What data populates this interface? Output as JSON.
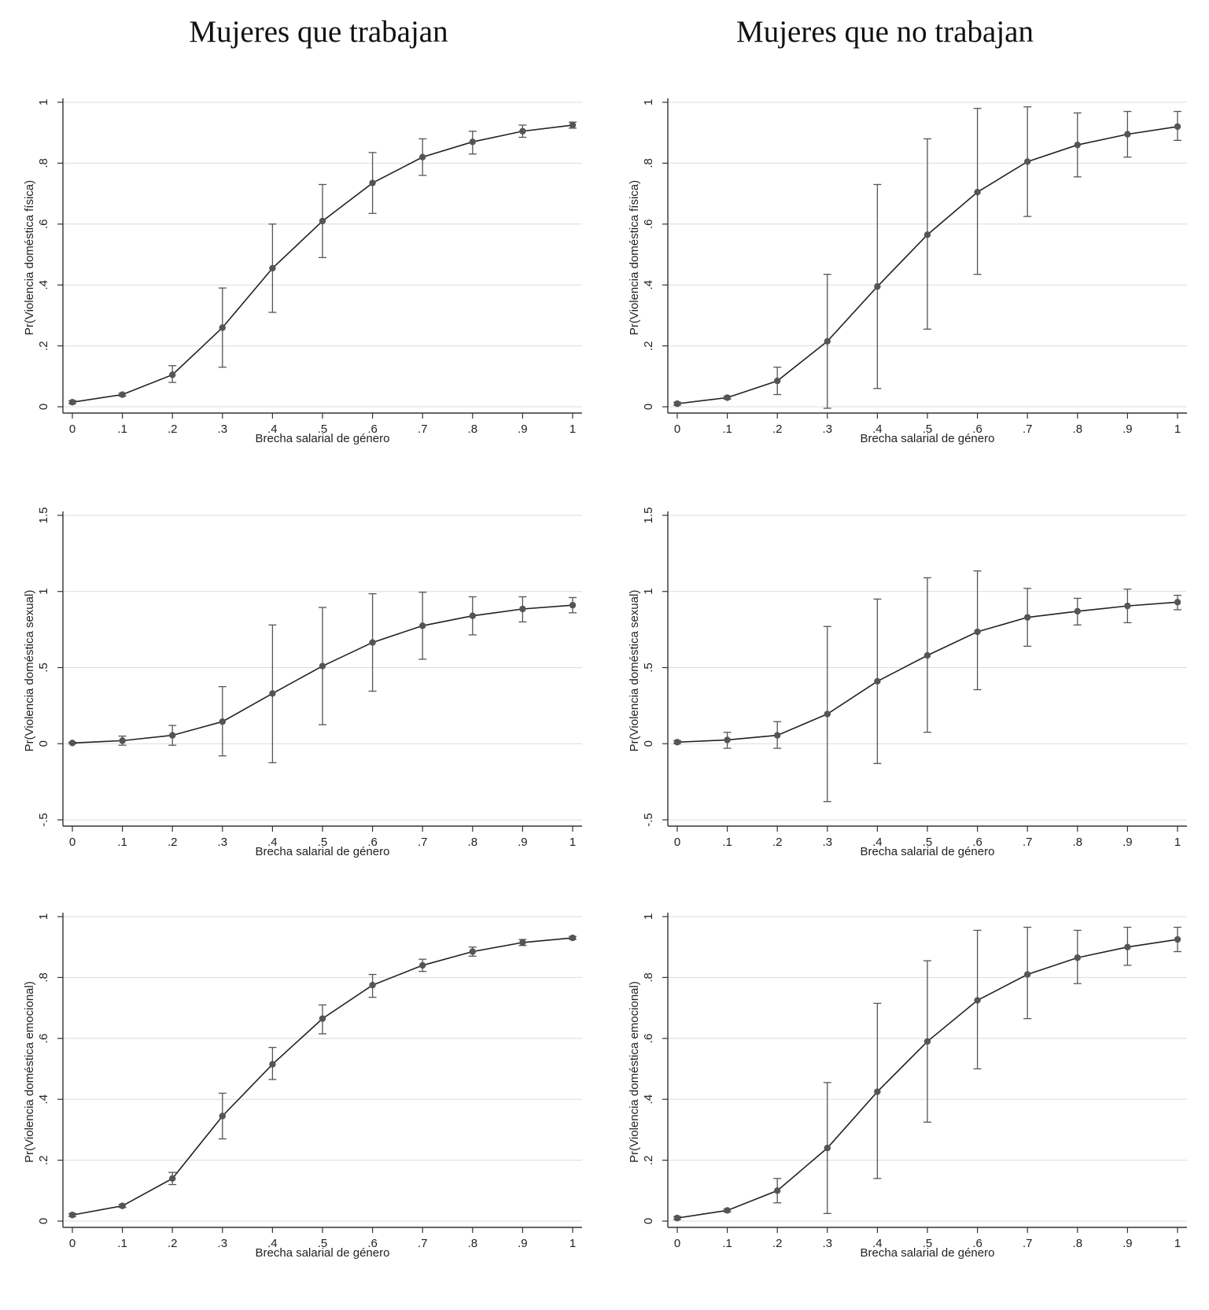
{
  "headers": [
    "Mujeres que trabajan",
    "Mujeres que no trabajan"
  ],
  "chart_data": [
    {
      "type": "line",
      "column": "Mujeres que trabajan",
      "xlabel": "Brecha salarial de género",
      "ylabel": "Pr(Violencia doméstica física)",
      "x": [
        0,
        0.1,
        0.2,
        0.3,
        0.4,
        0.5,
        0.6,
        0.7,
        0.8,
        0.9,
        1
      ],
      "xticks": [
        "0",
        ".1",
        ".2",
        ".3",
        ".4",
        ".5",
        ".6",
        ".7",
        ".8",
        ".9",
        "1"
      ],
      "yticks": [
        0,
        0.2,
        0.4,
        0.6,
        0.8,
        1
      ],
      "ytick_labels": [
        "0",
        ".2",
        ".4",
        ".6",
        ".8",
        "1"
      ],
      "ylim": [
        0,
        1
      ],
      "grid": true,
      "values": [
        0.015,
        0.04,
        0.105,
        0.26,
        0.455,
        0.61,
        0.735,
        0.82,
        0.87,
        0.905,
        0.925
      ],
      "ci_low": [
        0.01,
        0.035,
        0.08,
        0.13,
        0.31,
        0.49,
        0.635,
        0.76,
        0.83,
        0.885,
        0.915
      ],
      "ci_high": [
        0.02,
        0.045,
        0.135,
        0.39,
        0.6,
        0.73,
        0.835,
        0.88,
        0.905,
        0.925,
        0.935
      ]
    },
    {
      "type": "line",
      "column": "Mujeres que no trabajan",
      "xlabel": "Brecha salarial de género",
      "ylabel": "Pr(Violencia doméstica física)",
      "x": [
        0,
        0.1,
        0.2,
        0.3,
        0.4,
        0.5,
        0.6,
        0.7,
        0.8,
        0.9,
        1
      ],
      "xticks": [
        "0",
        ".1",
        ".2",
        ".3",
        ".4",
        ".5",
        ".6",
        ".7",
        ".8",
        ".9",
        "1"
      ],
      "yticks": [
        0,
        0.2,
        0.4,
        0.6,
        0.8,
        1
      ],
      "ytick_labels": [
        "0",
        ".2",
        ".4",
        ".6",
        ".8",
        "1"
      ],
      "ylim": [
        0,
        1
      ],
      "grid": true,
      "values": [
        0.01,
        0.03,
        0.085,
        0.215,
        0.395,
        0.565,
        0.705,
        0.805,
        0.86,
        0.895,
        0.92
      ],
      "ci_low": [
        0.005,
        0.025,
        0.04,
        -0.005,
        0.06,
        0.255,
        0.435,
        0.625,
        0.755,
        0.82,
        0.875
      ],
      "ci_high": [
        0.015,
        0.035,
        0.13,
        0.435,
        0.73,
        0.88,
        0.98,
        0.985,
        0.965,
        0.97,
        0.97
      ]
    },
    {
      "type": "line",
      "column": "Mujeres que trabajan",
      "xlabel": "Brecha salarial de género",
      "ylabel": "Pr(Violencia doméstica sexual)",
      "x": [
        0,
        0.1,
        0.2,
        0.3,
        0.4,
        0.5,
        0.6,
        0.7,
        0.8,
        0.9,
        1
      ],
      "xticks": [
        "0",
        ".1",
        ".2",
        ".3",
        ".4",
        ".5",
        ".6",
        ".7",
        ".8",
        ".9",
        "1"
      ],
      "yticks": [
        -0.5,
        0,
        0.5,
        1,
        1.5
      ],
      "ytick_labels": [
        "-.5",
        "0",
        ".5",
        "1",
        "1.5"
      ],
      "ylim": [
        -0.5,
        1.5
      ],
      "grid": true,
      "values": [
        0.005,
        0.02,
        0.055,
        0.145,
        0.33,
        0.51,
        0.665,
        0.775,
        0.84,
        0.885,
        0.91
      ],
      "ci_low": [
        0.0,
        -0.01,
        -0.01,
        -0.08,
        -0.125,
        0.125,
        0.345,
        0.555,
        0.715,
        0.8,
        0.86
      ],
      "ci_high": [
        0.01,
        0.05,
        0.12,
        0.375,
        0.78,
        0.895,
        0.985,
        0.995,
        0.965,
        0.965,
        0.96
      ]
    },
    {
      "type": "line",
      "column": "Mujeres que no trabajan",
      "xlabel": "Brecha salarial de género",
      "ylabel": "Pr(Violencia doméstica sexual)",
      "x": [
        0,
        0.1,
        0.2,
        0.3,
        0.4,
        0.5,
        0.6,
        0.7,
        0.8,
        0.9,
        1
      ],
      "xticks": [
        "0",
        ".1",
        ".2",
        ".3",
        ".4",
        ".5",
        ".6",
        ".7",
        ".8",
        ".9",
        "1"
      ],
      "yticks": [
        -0.5,
        0,
        0.5,
        1,
        1.5
      ],
      "ytick_labels": [
        "-.5",
        "0",
        ".5",
        "1",
        "1.5"
      ],
      "ylim": [
        -0.5,
        1.5
      ],
      "grid": true,
      "values": [
        0.01,
        0.025,
        0.055,
        0.195,
        0.41,
        0.58,
        0.735,
        0.83,
        0.87,
        0.905,
        0.93
      ],
      "ci_low": [
        0.0,
        -0.03,
        -0.03,
        -0.38,
        -0.13,
        0.075,
        0.355,
        0.64,
        0.78,
        0.795,
        0.88
      ],
      "ci_high": [
        0.02,
        0.075,
        0.145,
        0.77,
        0.95,
        1.09,
        1.135,
        1.02,
        0.955,
        1.015,
        0.975
      ]
    },
    {
      "type": "line",
      "column": "Mujeres que trabajan",
      "xlabel": "Brecha salarial de género",
      "ylabel": "Pr(Violencia doméstica emocional)",
      "x": [
        0,
        0.1,
        0.2,
        0.3,
        0.4,
        0.5,
        0.6,
        0.7,
        0.8,
        0.9,
        1
      ],
      "xticks": [
        "0",
        ".1",
        ".2",
        ".3",
        ".4",
        ".5",
        ".6",
        ".7",
        ".8",
        ".9",
        "1"
      ],
      "yticks": [
        0,
        0.2,
        0.4,
        0.6,
        0.8,
        1
      ],
      "ytick_labels": [
        "0",
        ".2",
        ".4",
        ".6",
        ".8",
        "1"
      ],
      "ylim": [
        0,
        1
      ],
      "grid": true,
      "values": [
        0.02,
        0.05,
        0.14,
        0.345,
        0.515,
        0.665,
        0.775,
        0.84,
        0.885,
        0.915,
        0.93
      ],
      "ci_low": [
        0.015,
        0.045,
        0.12,
        0.27,
        0.465,
        0.615,
        0.735,
        0.82,
        0.87,
        0.905,
        0.925
      ],
      "ci_high": [
        0.025,
        0.055,
        0.16,
        0.42,
        0.57,
        0.71,
        0.81,
        0.86,
        0.9,
        0.925,
        0.935
      ]
    },
    {
      "type": "line",
      "column": "Mujeres que no trabajan",
      "xlabel": "Brecha salarial de género",
      "ylabel": "Pr(Violencia doméstica emocional)",
      "x": [
        0,
        0.1,
        0.2,
        0.3,
        0.4,
        0.5,
        0.6,
        0.7,
        0.8,
        0.9,
        1
      ],
      "xticks": [
        "0",
        ".1",
        ".2",
        ".3",
        ".4",
        ".5",
        ".6",
        ".7",
        ".8",
        ".9",
        "1"
      ],
      "yticks": [
        0,
        0.2,
        0.4,
        0.6,
        0.8,
        1
      ],
      "ytick_labels": [
        "0",
        ".2",
        ".4",
        ".6",
        ".8",
        "1"
      ],
      "ylim": [
        0,
        1
      ],
      "grid": true,
      "values": [
        0.01,
        0.035,
        0.1,
        0.24,
        0.425,
        0.59,
        0.725,
        0.81,
        0.865,
        0.9,
        0.925
      ],
      "ci_low": [
        0.005,
        0.03,
        0.06,
        0.025,
        0.14,
        0.325,
        0.5,
        0.665,
        0.78,
        0.84,
        0.885
      ],
      "ci_high": [
        0.015,
        0.04,
        0.14,
        0.455,
        0.715,
        0.855,
        0.955,
        0.965,
        0.955,
        0.965,
        0.965
      ]
    }
  ]
}
